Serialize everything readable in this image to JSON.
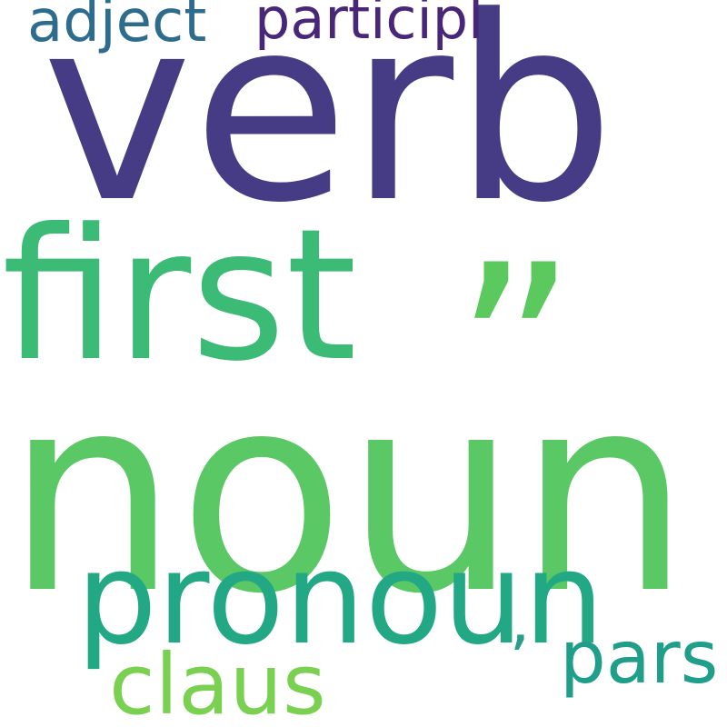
{
  "words": {
    "noun": {
      "text": "noun",
      "color": "#5ac864"
    },
    "verb": {
      "text": "verb",
      "color": "#463c85"
    },
    "first": {
      "text": "first",
      "color": "#3bbb75"
    },
    "quote": {
      "text": "”",
      "color": "#5cc95e"
    },
    "pronoun": {
      "text": "pronoun",
      "color": "#22a884"
    },
    "claus": {
      "text": "claus",
      "color": "#7ad151"
    },
    "pars": {
      "text": "pars",
      "color": "#1f9e89"
    },
    "apos": {
      "text": "’",
      "color": "#2a9f88"
    },
    "adject": {
      "text": "adject",
      "color": "#2e6c8e"
    },
    "particip": {
      "text": "participl",
      "color": "#482778"
    }
  }
}
